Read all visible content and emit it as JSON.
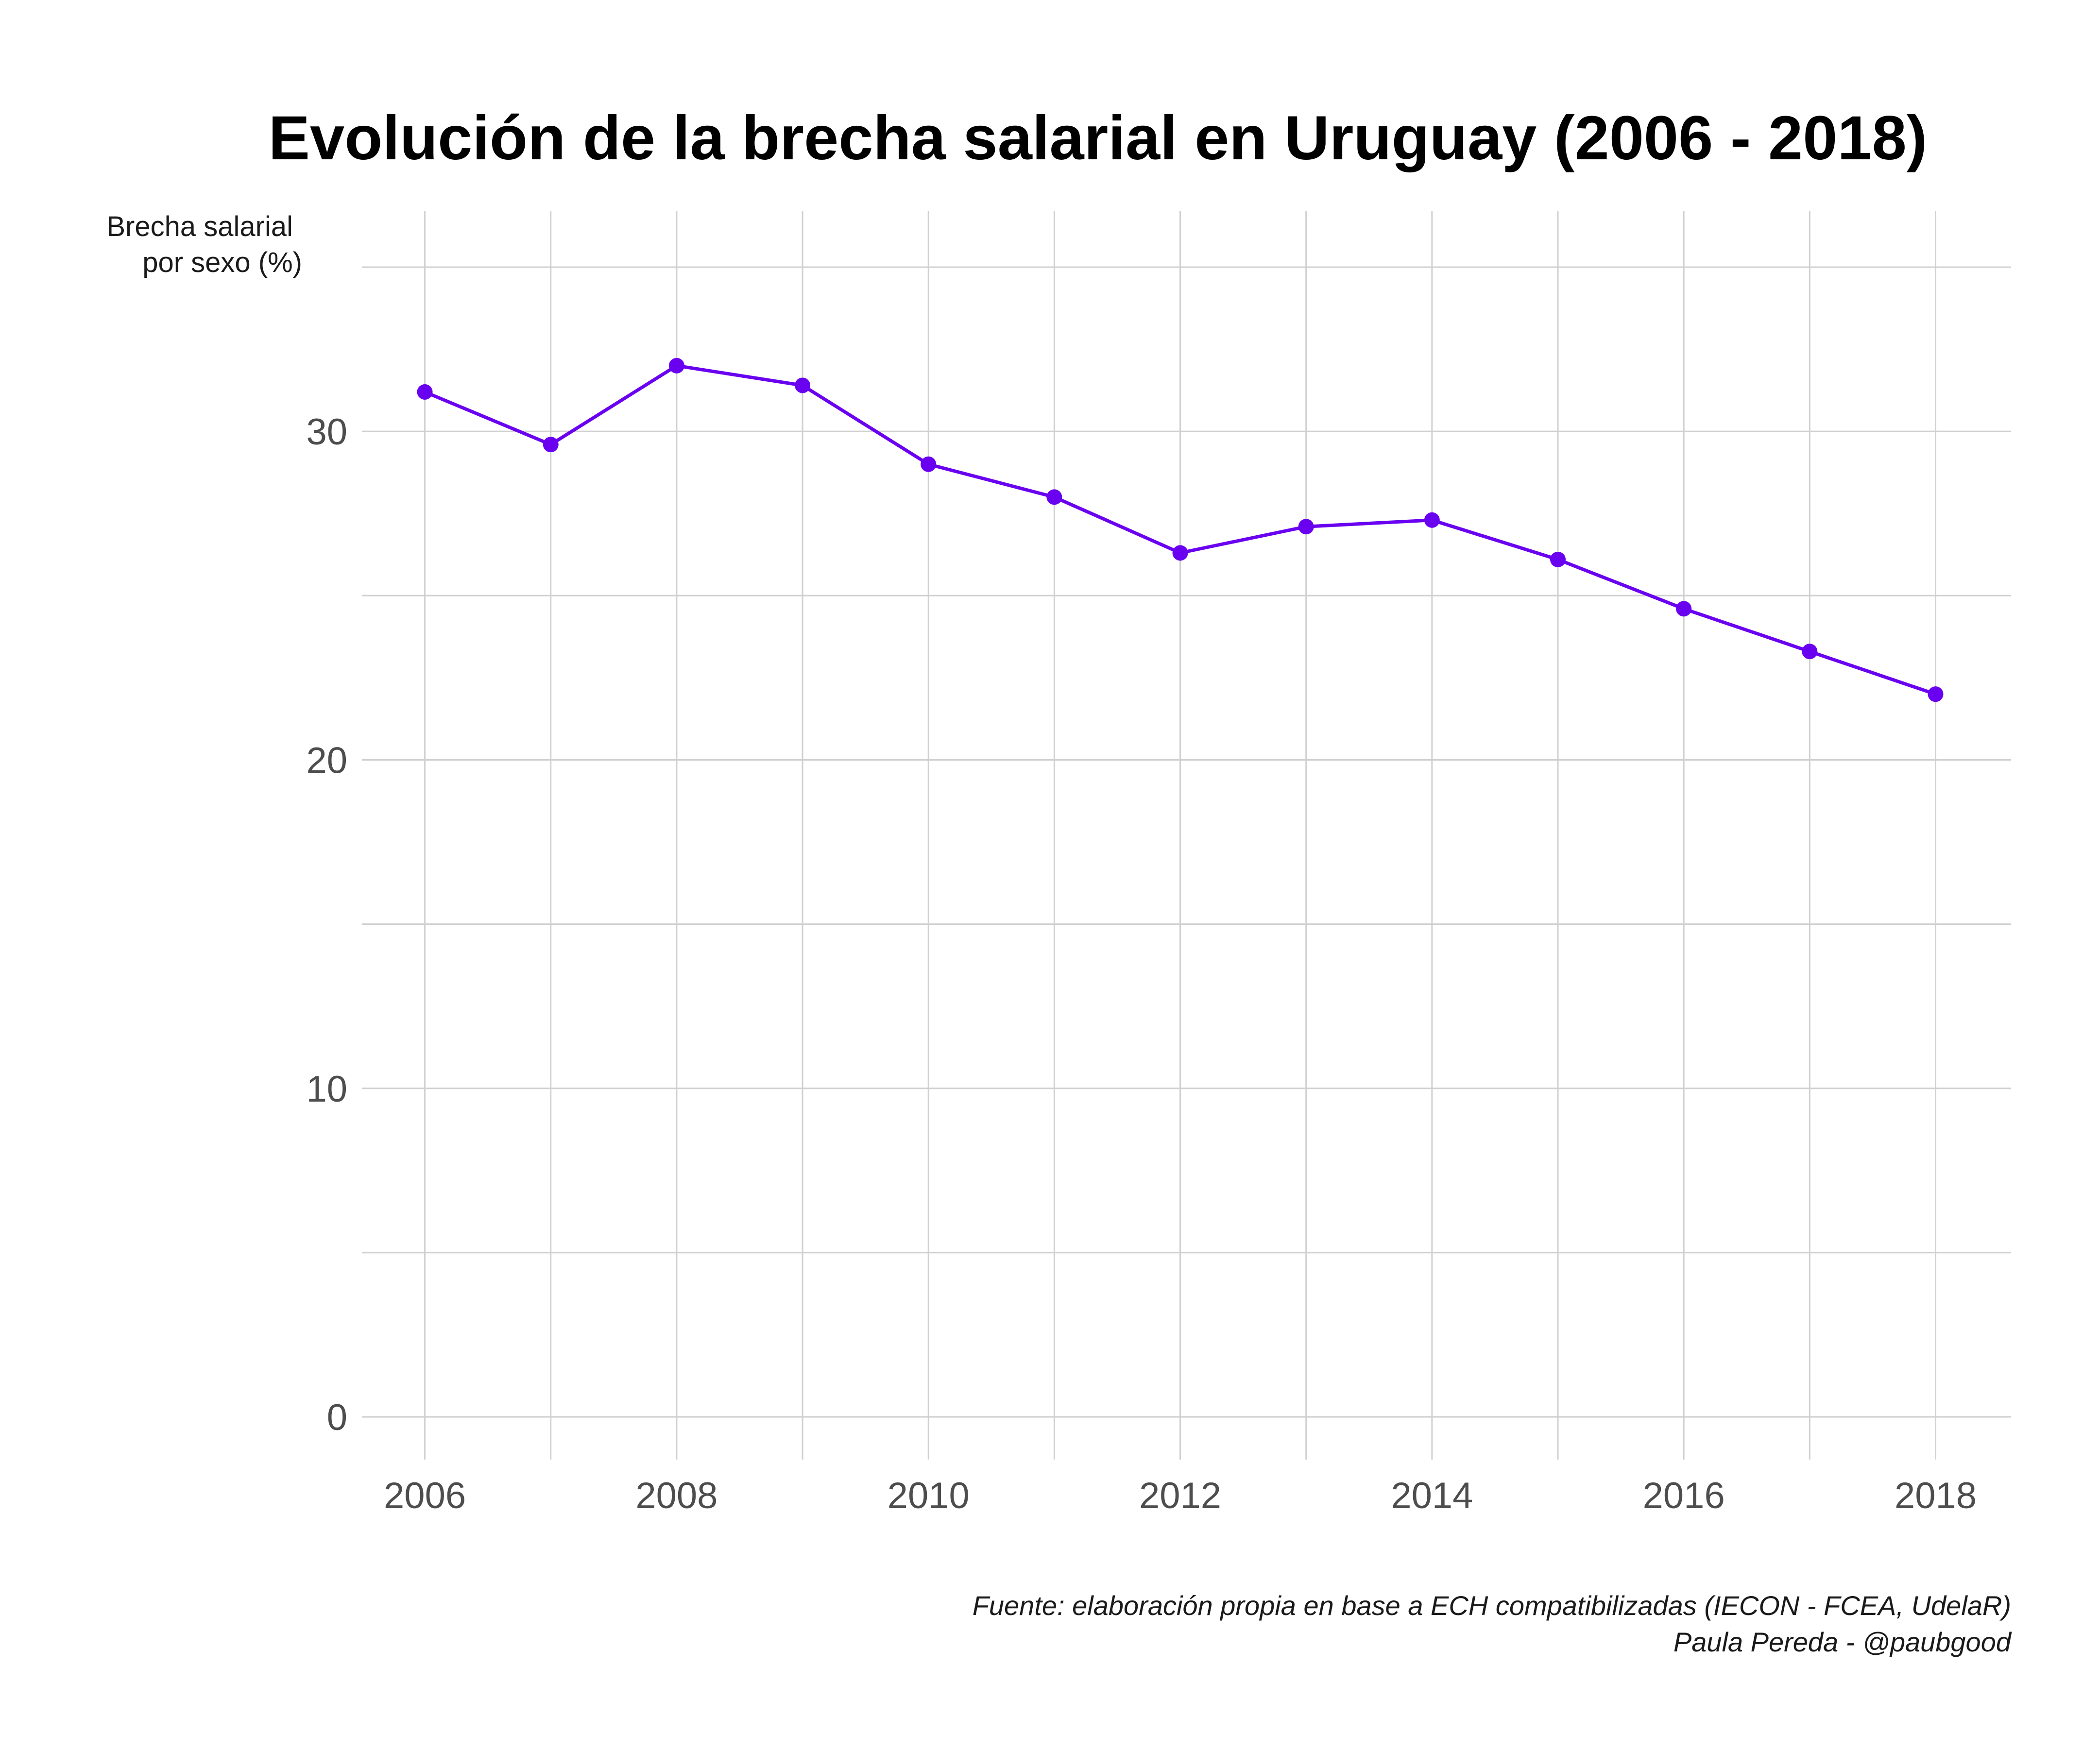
{
  "chart_data": {
    "type": "line",
    "title": "Evolución de la brecha salarial en Uruguay (2006 - 2018)",
    "ylabel_lines": [
      "Brecha salarial",
      "por sexo (%)"
    ],
    "xlabel": "",
    "x": [
      2006,
      2007,
      2008,
      2009,
      2010,
      2011,
      2012,
      2013,
      2014,
      2015,
      2016,
      2017,
      2018
    ],
    "values": [
      31.2,
      29.6,
      32.0,
      31.4,
      29.0,
      28.0,
      26.3,
      27.1,
      27.3,
      26.1,
      24.6,
      23.3,
      22.0
    ],
    "xlim": [
      2005.5,
      2018.6
    ],
    "ylim": [
      -1.3,
      36.7
    ],
    "x_ticks": [
      2006,
      2008,
      2010,
      2012,
      2014,
      2016,
      2018
    ],
    "x_tick_labels": [
      "2006",
      "2008",
      "2010",
      "2012",
      "2014",
      "2016",
      "2018"
    ],
    "x_minor_ticks": [
      2007,
      2009,
      2011,
      2013,
      2015,
      2017
    ],
    "y_ticks": [
      0,
      10,
      20,
      30
    ],
    "y_tick_labels": [
      "0",
      "10",
      "20",
      "30"
    ],
    "y_minor_ticks": [
      5,
      15,
      25,
      35
    ],
    "grid": true,
    "line_color": "#6a00f0",
    "caption_lines": [
      "Fuente: elaboración propia en base a ECH compatibilizadas (IECON - FCEA, UdelaR)",
      "Paula Pereda - @paubgood"
    ]
  }
}
